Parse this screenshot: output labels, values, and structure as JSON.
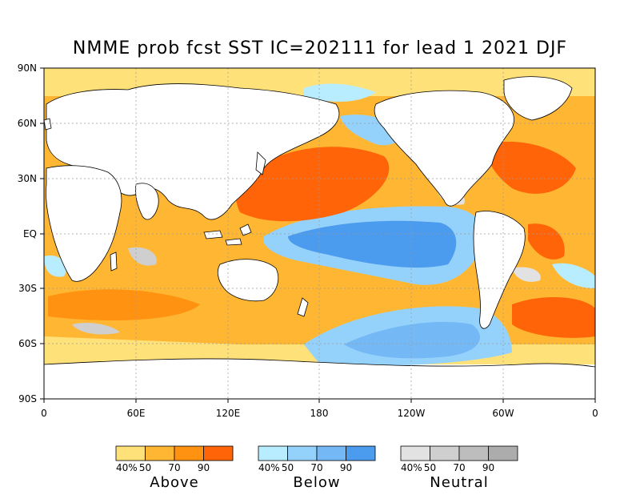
{
  "title": "NMME prob fcst SST IC=202111 for lead 1 2021 DJF",
  "lat_labels": [
    "90N",
    "60N",
    "30N",
    "EQ",
    "30S",
    "60S",
    "90S"
  ],
  "lon_labels": [
    "0",
    "60E",
    "120E",
    "180",
    "120W",
    "60W",
    "0"
  ],
  "legend": [
    {
      "name": "Above",
      "ticks": [
        "40%",
        "50",
        "70",
        "90"
      ],
      "colors": [
        "#ffe17a",
        "#ffb733",
        "#ff9211",
        "#ff6408"
      ]
    },
    {
      "name": "Below",
      "ticks": [
        "40%",
        "50",
        "70",
        "90"
      ],
      "colors": [
        "#b8ecff",
        "#95d2fb",
        "#74b8f6",
        "#4b9bee"
      ]
    },
    {
      "name": "Neutral",
      "ticks": [
        "40%",
        "50",
        "70",
        "90"
      ],
      "colors": [
        "#e2e2e2",
        "#cfcfcf",
        "#bdbdbd",
        "#acacac"
      ]
    }
  ],
  "colors": {
    "background": "#ffffff",
    "land": "#ffffff",
    "coast": "#000000",
    "grid": "#9a9a9a"
  }
}
